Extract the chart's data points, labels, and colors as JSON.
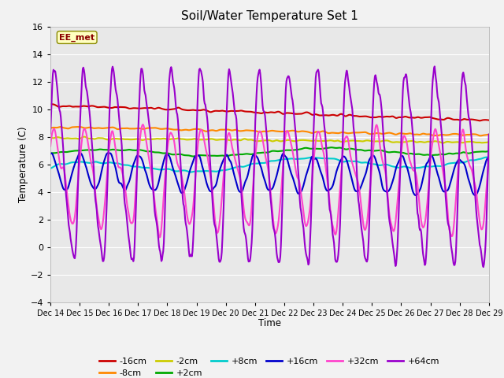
{
  "title": "Soil/Water Temperature Set 1",
  "xlabel": "Time",
  "ylabel": "Temperature (C)",
  "ylim": [
    -4,
    16
  ],
  "yticks": [
    -4,
    -2,
    0,
    2,
    4,
    6,
    8,
    10,
    12,
    14,
    16
  ],
  "xtick_labels": [
    "Dec 14",
    "Dec 15",
    "Dec 16",
    "Dec 17",
    "Dec 18",
    "Dec 19",
    "Dec 20",
    "Dec 21",
    "Dec 22",
    "Dec 23",
    "Dec 24",
    "Dec 25",
    "Dec 26",
    "Dec 27",
    "Dec 28",
    "Dec 29"
  ],
  "station_label": "EE_met",
  "series": {
    "-16cm": {
      "color": "#cc0000",
      "linewidth": 1.5
    },
    "-8cm": {
      "color": "#ff8800",
      "linewidth": 1.5
    },
    "-2cm": {
      "color": "#cccc00",
      "linewidth": 1.5
    },
    "+2cm": {
      "color": "#00aa00",
      "linewidth": 1.5
    },
    "+8cm": {
      "color": "#00cccc",
      "linewidth": 1.5
    },
    "+16cm": {
      "color": "#0000cc",
      "linewidth": 1.5
    },
    "+32cm": {
      "color": "#ff44cc",
      "linewidth": 1.5
    },
    "+64cm": {
      "color": "#9900cc",
      "linewidth": 1.5
    }
  },
  "legend_order": [
    "-16cm",
    "-8cm",
    "-2cm",
    "+2cm",
    "+8cm",
    "+16cm",
    "+32cm",
    "+64cm"
  ],
  "fig_facecolor": "#f2f2f2"
}
